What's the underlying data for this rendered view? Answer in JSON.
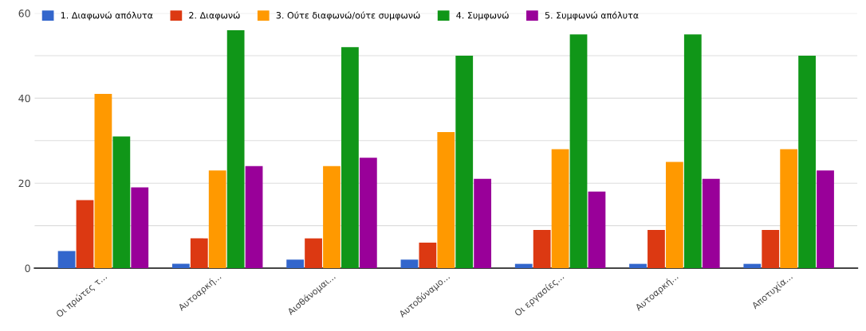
{
  "chart_data": {
    "type": "bar",
    "categories": [
      "Οι πρώτες τ...",
      "Αυτοαρκή...",
      "Αισθάνομαι...",
      "Αυτοδύναμο...",
      "Οι εργασίες...",
      "Αυτοαρκή...",
      "Αποτυχία..."
    ],
    "series": [
      {
        "name": "1. Διαφωνώ απόλυτα",
        "color": "#3366cc",
        "values": [
          4,
          1,
          2,
          2,
          1,
          1,
          1
        ]
      },
      {
        "name": "2. Διαφωνώ",
        "color": "#dc3912",
        "values": [
          16,
          7,
          7,
          6,
          9,
          9,
          9
        ]
      },
      {
        "name": "3. Ούτε διαφωνώ/ούτε συμφωνώ",
        "color": "#ff9900",
        "values": [
          41,
          23,
          24,
          32,
          28,
          25,
          28
        ]
      },
      {
        "name": "4. Συμφωνώ",
        "color": "#109618",
        "values": [
          31,
          56,
          52,
          50,
          55,
          55,
          50
        ]
      },
      {
        "name": "5. Συμφωνώ απόλυτα",
        "color": "#990099",
        "values": [
          19,
          24,
          26,
          21,
          18,
          21,
          23
        ]
      }
    ],
    "ylim": [
      0,
      60
    ],
    "yticks": [
      0,
      {
        "value": 10,
        "label": null
      },
      20,
      {
        "value": 30,
        "label": null
      },
      40,
      {
        "value": 50,
        "label": null
      },
      60
    ],
    "grid": "y",
    "legend": "top left"
  }
}
